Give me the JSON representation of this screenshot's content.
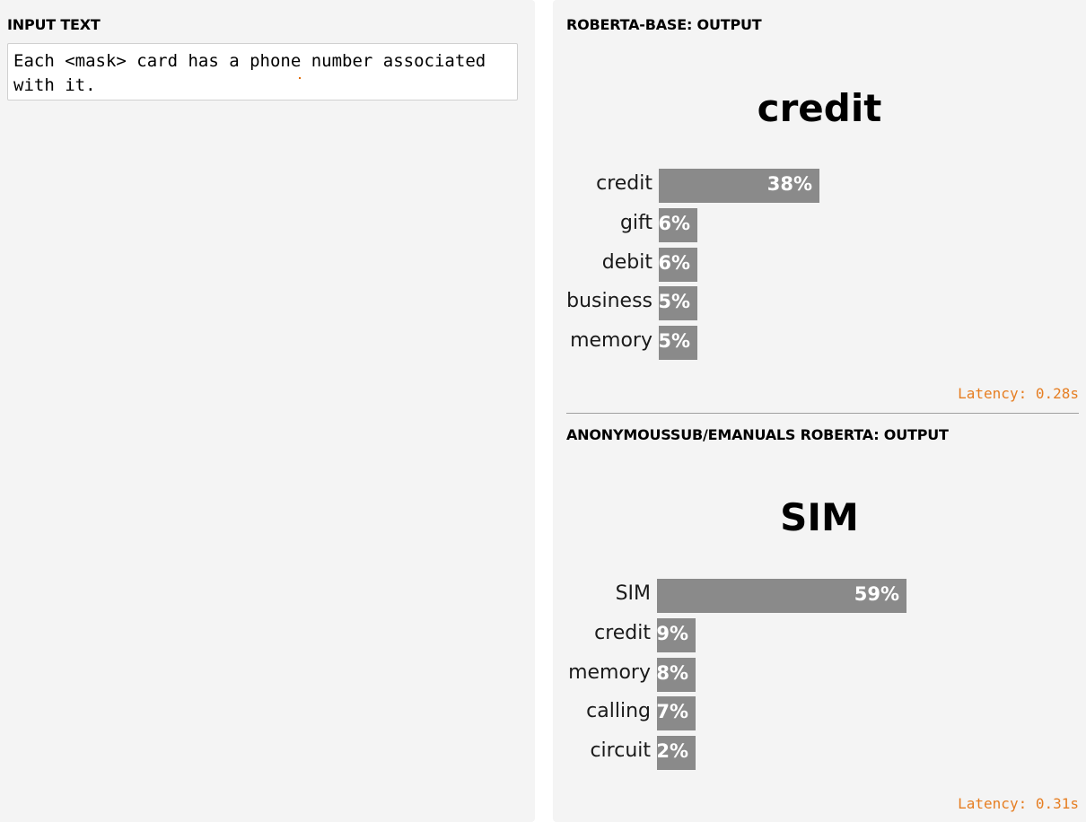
{
  "input": {
    "title": "INPUT TEXT",
    "value": "Each <mask> card has a phone number associated with it."
  },
  "outputs": [
    {
      "title": "ROBERTA-BASE: OUTPUT",
      "top_prediction": "credit",
      "predictions": [
        {
          "token": "credit",
          "percent": "38%",
          "score": 0.38
        },
        {
          "token": "gift",
          "percent": "6%",
          "score": 0.06
        },
        {
          "token": "debit",
          "percent": "6%",
          "score": 0.06
        },
        {
          "token": "business",
          "percent": "5%",
          "score": 0.05
        },
        {
          "token": "memory",
          "percent": "5%",
          "score": 0.05
        }
      ],
      "latency": "Latency: 0.28s"
    },
    {
      "title": "ANONYMOUSSUB/EMANUALS ROBERTA: OUTPUT",
      "top_prediction": "SIM",
      "predictions": [
        {
          "token": "SIM",
          "percent": "59%",
          "score": 0.59
        },
        {
          "token": "credit",
          "percent": "9%",
          "score": 0.09
        },
        {
          "token": "memory",
          "percent": "8%",
          "score": 0.08
        },
        {
          "token": "calling",
          "percent": "7%",
          "score": 0.07
        },
        {
          "token": "circuit",
          "percent": "2%",
          "score": 0.02
        }
      ],
      "latency": "Latency: 0.31s"
    }
  ],
  "colors": {
    "bar": "#8a8a8a",
    "latency": "#e67e22",
    "panel_bg": "#f4f4f4"
  }
}
